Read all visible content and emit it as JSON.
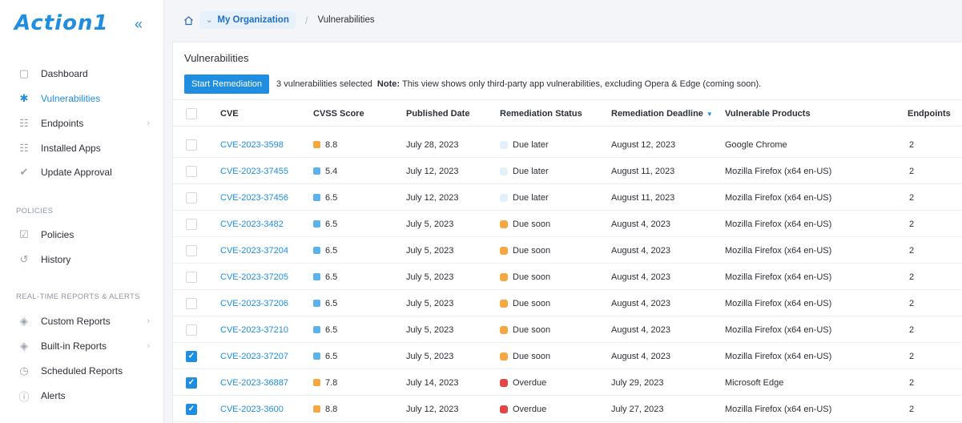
{
  "app": {
    "logo": "Action1",
    "collapse_icon": "double-chevron-left-icon"
  },
  "sidebar": {
    "items": [
      {
        "label": "Dashboard",
        "icon": "monitor-icon",
        "active": false,
        "chevron": false
      },
      {
        "label": "Vulnerabilities",
        "icon": "bug-icon",
        "active": true,
        "chevron": false
      },
      {
        "label": "Endpoints",
        "icon": "network-icon",
        "active": false,
        "chevron": true
      },
      {
        "label": "Installed Apps",
        "icon": "grid-icon",
        "active": false,
        "chevron": false
      },
      {
        "label": "Update Approval",
        "icon": "check-badge-icon",
        "active": false,
        "chevron": false
      }
    ],
    "section_policies": "POLICIES",
    "policy_items": [
      {
        "label": "Policies",
        "icon": "policy-icon",
        "chevron": false
      },
      {
        "label": "History",
        "icon": "history-icon",
        "chevron": false
      }
    ],
    "section_reports": "REAL-TIME REPORTS & ALERTS",
    "report_items": [
      {
        "label": "Custom Reports",
        "icon": "layers-icon",
        "chevron": true
      },
      {
        "label": "Built-in Reports",
        "icon": "layers-icon",
        "chevron": true
      },
      {
        "label": "Scheduled Reports",
        "icon": "clock-icon",
        "chevron": false
      },
      {
        "label": "Alerts",
        "icon": "alert-icon",
        "chevron": false
      }
    ]
  },
  "breadcrumb": {
    "org": "My Organization",
    "current": "Vulnerabilities"
  },
  "main": {
    "title": "Vulnerabilities",
    "start_button": "Start Remediation",
    "selected_text": "3 vulnerabilities selected",
    "note_label": "Note:",
    "note_text": "This view shows only third-party app vulnerabilities, excluding Opera & Edge (coming soon).",
    "columns": [
      "CVE",
      "CVSS Score",
      "Published Date",
      "Remediation Status",
      "Remediation Deadline",
      "Vulnerable Products",
      "Endpoints"
    ],
    "rows": [
      {
        "cve": "CVE-2023-3598",
        "score": "8.8",
        "score_color": "#f5a742",
        "published": "July 28, 2023",
        "status": "Due later",
        "status_color": "#e3f0f9",
        "deadline": "August 12, 2023",
        "product": "Google Chrome",
        "endpoints": "2",
        "checked": false
      },
      {
        "cve": "CVE-2023-37455",
        "score": "5.4",
        "score_color": "#5cb3e8",
        "published": "July 12, 2023",
        "status": "Due later",
        "status_color": "#e3f0f9",
        "deadline": "August 11, 2023",
        "product": "Mozilla Firefox (x64 en-US)",
        "endpoints": "2",
        "checked": false
      },
      {
        "cve": "CVE-2023-37456",
        "score": "6.5",
        "score_color": "#5cb3e8",
        "published": "July 12, 2023",
        "status": "Due later",
        "status_color": "#e3f0f9",
        "deadline": "August 11, 2023",
        "product": "Mozilla Firefox (x64 en-US)",
        "endpoints": "2",
        "checked": false
      },
      {
        "cve": "CVE-2023-3482",
        "score": "6.5",
        "score_color": "#5cb3e8",
        "published": "July 5, 2023",
        "status": "Due soon",
        "status_color": "#f5a742",
        "deadline": "August 4, 2023",
        "product": "Mozilla Firefox (x64 en-US)",
        "endpoints": "2",
        "checked": false
      },
      {
        "cve": "CVE-2023-37204",
        "score": "6.5",
        "score_color": "#5cb3e8",
        "published": "July 5, 2023",
        "status": "Due soon",
        "status_color": "#f5a742",
        "deadline": "August 4, 2023",
        "product": "Mozilla Firefox (x64 en-US)",
        "endpoints": "2",
        "checked": false
      },
      {
        "cve": "CVE-2023-37205",
        "score": "6.5",
        "score_color": "#5cb3e8",
        "published": "July 5, 2023",
        "status": "Due soon",
        "status_color": "#f5a742",
        "deadline": "August 4, 2023",
        "product": "Mozilla Firefox (x64 en-US)",
        "endpoints": "2",
        "checked": false
      },
      {
        "cve": "CVE-2023-37206",
        "score": "6.5",
        "score_color": "#5cb3e8",
        "published": "July 5, 2023",
        "status": "Due soon",
        "status_color": "#f5a742",
        "deadline": "August 4, 2023",
        "product": "Mozilla Firefox (x64 en-US)",
        "endpoints": "2",
        "checked": false
      },
      {
        "cve": "CVE-2023-37210",
        "score": "6.5",
        "score_color": "#5cb3e8",
        "published": "July 5, 2023",
        "status": "Due soon",
        "status_color": "#f5a742",
        "deadline": "August 4, 2023",
        "product": "Mozilla Firefox (x64 en-US)",
        "endpoints": "2",
        "checked": false
      },
      {
        "cve": "CVE-2023-37207",
        "score": "6.5",
        "score_color": "#5cb3e8",
        "published": "July 5, 2023",
        "status": "Due soon",
        "status_color": "#f5a742",
        "deadline": "August 4, 2023",
        "product": "Mozilla Firefox (x64 en-US)",
        "endpoints": "2",
        "checked": true
      },
      {
        "cve": "CVE-2023-36887",
        "score": "7.8",
        "score_color": "#f5a742",
        "published": "July 14, 2023",
        "status": "Overdue",
        "status_color": "#e04848",
        "deadline": "July 29, 2023",
        "product": "Microsoft Edge",
        "endpoints": "2",
        "checked": true
      },
      {
        "cve": "CVE-2023-3600",
        "score": "8.8",
        "score_color": "#f5a742",
        "published": "July 12, 2023",
        "status": "Overdue",
        "status_color": "#e04848",
        "deadline": "July 27, 2023",
        "product": "Mozilla Firefox (x64 en-US)",
        "endpoints": "2",
        "checked": true
      }
    ]
  }
}
